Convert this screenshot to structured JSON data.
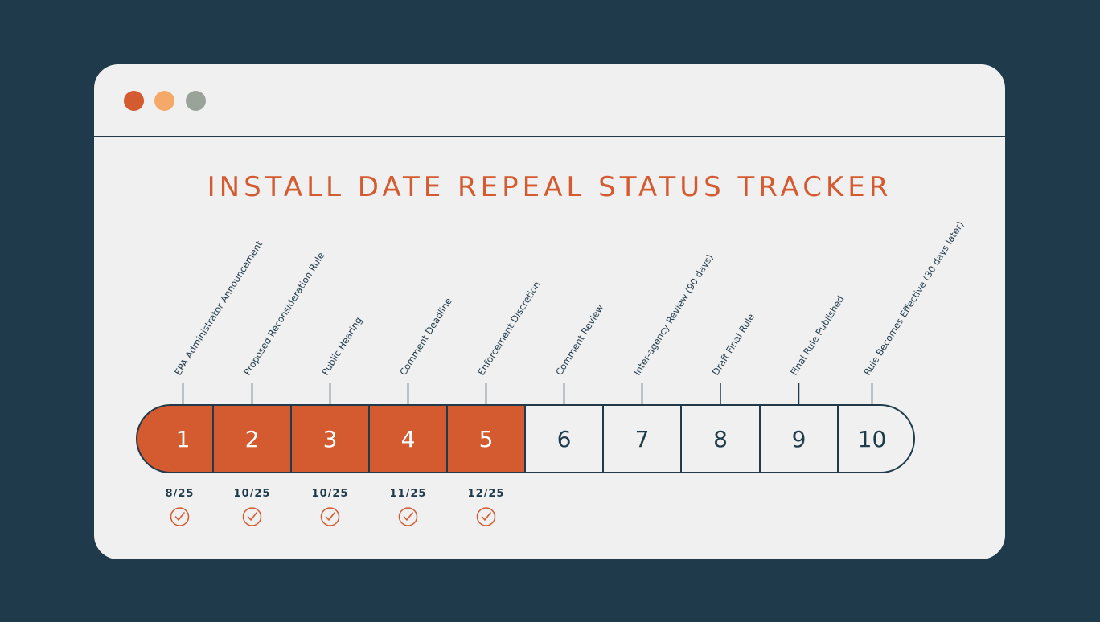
{
  "window": {
    "buttons": [
      "close",
      "minimize",
      "maximize"
    ],
    "colors": {
      "close": "#d45a30",
      "minimize": "#f5a968",
      "maximize": "#9aa39a"
    }
  },
  "title": "INSTALL DATE REPEAL STATUS TRACKER",
  "colors": {
    "accent": "#d45a30",
    "dark": "#1f3b4b",
    "panel": "#f0f0f0"
  },
  "steps": [
    {
      "number": "1",
      "label": "EPA Administrator Announcement",
      "date": "8/25",
      "completed": true
    },
    {
      "number": "2",
      "label": "Proposed Reconsideration Rule",
      "date": "10/25",
      "completed": true
    },
    {
      "number": "3",
      "label": "Public Hearing",
      "date": "10/25",
      "completed": true
    },
    {
      "number": "4",
      "label": "Comment Deadline",
      "date": "11/25",
      "completed": true
    },
    {
      "number": "5",
      "label": "Enforcement Discretion",
      "date": "12/25",
      "completed": true
    },
    {
      "number": "6",
      "label": "Comment Review",
      "date": "",
      "completed": false
    },
    {
      "number": "7",
      "label": "Inter-agency Review (90 days)",
      "date": "",
      "completed": false
    },
    {
      "number": "8",
      "label": "Draft Final Rule",
      "date": "",
      "completed": false
    },
    {
      "number": "9",
      "label": "Final Rule Published",
      "date": "",
      "completed": false
    },
    {
      "number": "10",
      "label": "Rule Becomes Effective (30 days later)",
      "date": "",
      "completed": false
    }
  ],
  "check_icon": "check-circle-icon"
}
